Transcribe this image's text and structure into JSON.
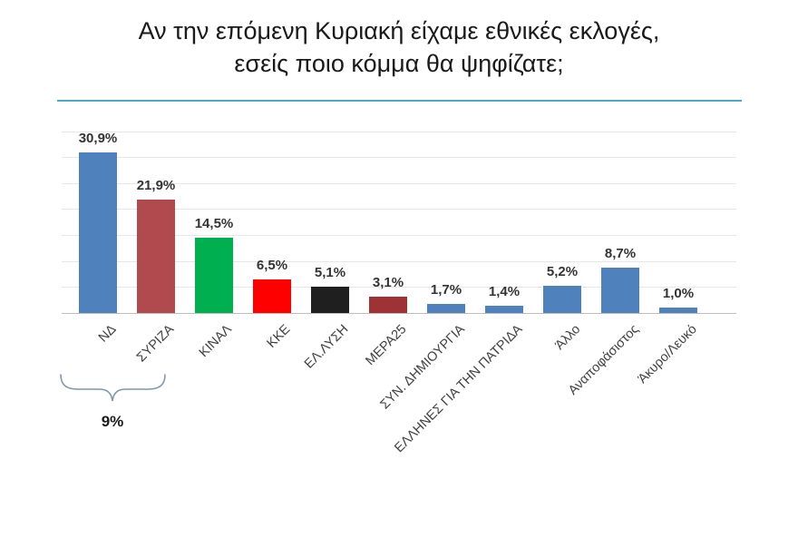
{
  "title": "Αν την επόμενη Κυριακή είχαμε εθνικές εκλογές, εσείς ποιο κόμμα θα ψηφίζατε;",
  "divider_color": "#4BACC6",
  "chart_data": {
    "type": "bar",
    "title": "Αν την επόμενη Κυριακή είχαμε εθνικές εκλογές, εσείς ποιο κόμμα θα ψηφίζατε;",
    "categories": [
      "ΝΔ",
      "ΣΥΡΙΖΑ",
      "ΚΙΝΑΛ",
      "ΚΚΕ",
      "ΕΛ.ΛΥΣΗ",
      "ΜΕΡΑ25",
      "ΣΥΝ. ΔΗΜΙΟΥΡΓΙΑ",
      "ΕΛΛΗΝΕΣ ΓΙΑ ΤΗΝ ΠΑΤΡΙΔΑ",
      "Άλλο",
      "Αναποφάσιστος",
      "Άκυρο/Λευκό"
    ],
    "values": [
      30.9,
      21.9,
      14.5,
      6.5,
      5.1,
      3.1,
      1.7,
      1.4,
      5.2,
      8.7,
      1.0
    ],
    "value_labels": [
      "30,9%",
      "21,9%",
      "14,5%",
      "6,5%",
      "5,1%",
      "3,1%",
      "1,7%",
      "1,4%",
      "5,2%",
      "8,7%",
      "1,0%"
    ],
    "colors": [
      "#4F81BD",
      "#B04A4E",
      "#00B050",
      "#FF0000",
      "#1F1F1F",
      "#9E3234",
      "#4F81BD",
      "#4F81BD",
      "#4F81BD",
      "#4F81BD",
      "#4F81BD"
    ],
    "xlabel": "",
    "ylabel": "",
    "ylim": [
      0,
      35
    ],
    "grid": true,
    "gridline_step": 5,
    "legend": "none"
  },
  "annotation": {
    "label": "9%"
  }
}
